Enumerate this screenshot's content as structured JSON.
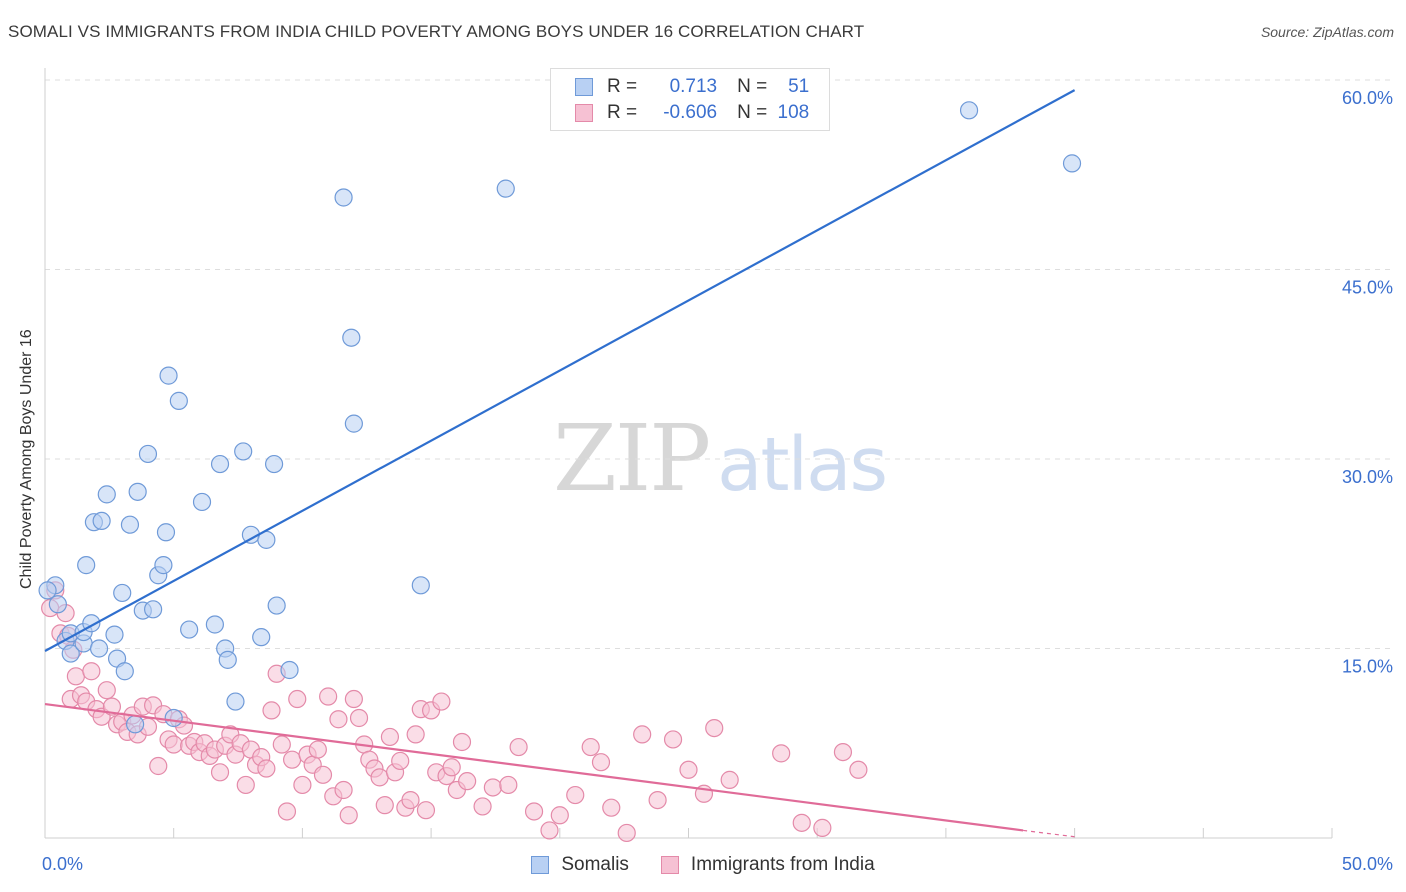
{
  "header": {
    "title": "SOMALI VS IMMIGRANTS FROM INDIA CHILD POVERTY AMONG BOYS UNDER 16 CORRELATION CHART",
    "source": "Source: ZipAtlas.com"
  },
  "watermark": {
    "part1": "ZIP",
    "part2": "atlas"
  },
  "legend_top": {
    "rows": [
      {
        "r_label": "R =",
        "r_value": "0.713",
        "n_label": "N =",
        "n_value": "51"
      },
      {
        "r_label": "R =",
        "r_value": "-0.606",
        "n_label": "N =",
        "n_value": "108"
      }
    ]
  },
  "colors": {
    "somali_fill": "#b8d0f3",
    "somali_stroke": "#6f9ad8",
    "somali_line": "#2f6fce",
    "india_fill": "#f6c1d3",
    "india_stroke": "#e48aa9",
    "india_line": "#e06b98",
    "grid": "#dedede",
    "tick_label": "#3b6fce"
  },
  "chart_data": {
    "type": "scatter",
    "title": "SOMALI VS IMMIGRANTS FROM INDIA CHILD POVERTY AMONG BOYS UNDER 16 CORRELATION CHART",
    "xlabel": "",
    "ylabel": "Child Poverty Among Boys Under 16",
    "xlim": [
      0,
      50
    ],
    "ylim": [
      0,
      60
    ],
    "x_tick_labels": [
      "0.0%",
      "50.0%"
    ],
    "y_ticks": [
      15,
      30,
      45,
      60
    ],
    "y_tick_labels": [
      "15.0%",
      "30.0%",
      "45.0%",
      "60.0%"
    ],
    "grid": true,
    "legend_placement": "bottom-center",
    "series": [
      {
        "name": "Somalis",
        "r": 0.713,
        "n": 51,
        "trend": {
          "x": [
            0,
            40.0
          ],
          "y": [
            14.8,
            59.2
          ]
        },
        "points": [
          [
            0.4,
            20.0
          ],
          [
            0.5,
            18.5
          ],
          [
            0.8,
            15.6
          ],
          [
            1.0,
            16.2
          ],
          [
            1.0,
            14.6
          ],
          [
            1.5,
            15.4
          ],
          [
            1.5,
            16.3
          ],
          [
            1.6,
            21.6
          ],
          [
            1.8,
            17.0
          ],
          [
            1.9,
            25.0
          ],
          [
            2.1,
            15.0
          ],
          [
            2.2,
            25.1
          ],
          [
            2.4,
            27.2
          ],
          [
            2.7,
            16.1
          ],
          [
            2.8,
            14.2
          ],
          [
            3.0,
            19.4
          ],
          [
            3.1,
            13.2
          ],
          [
            3.3,
            24.8
          ],
          [
            3.5,
            9.0
          ],
          [
            3.6,
            27.4
          ],
          [
            3.8,
            18.0
          ],
          [
            4.0,
            30.4
          ],
          [
            4.2,
            18.1
          ],
          [
            4.4,
            20.8
          ],
          [
            4.6,
            21.6
          ],
          [
            4.7,
            24.2
          ],
          [
            4.8,
            36.6
          ],
          [
            5.0,
            9.5
          ],
          [
            5.2,
            34.6
          ],
          [
            5.6,
            16.5
          ],
          [
            6.1,
            26.6
          ],
          [
            6.6,
            16.9
          ],
          [
            6.8,
            29.6
          ],
          [
            7.0,
            15.0
          ],
          [
            7.1,
            14.1
          ],
          [
            7.4,
            10.8
          ],
          [
            7.7,
            30.6
          ],
          [
            8.0,
            24.0
          ],
          [
            8.4,
            15.9
          ],
          [
            8.6,
            23.6
          ],
          [
            8.9,
            29.6
          ],
          [
            9.0,
            18.4
          ],
          [
            9.5,
            13.3
          ],
          [
            11.6,
            50.7
          ],
          [
            11.9,
            39.6
          ],
          [
            12.0,
            32.8
          ],
          [
            14.6,
            20.0
          ],
          [
            17.9,
            51.4
          ],
          [
            35.9,
            57.6
          ],
          [
            39.9,
            53.4
          ],
          [
            0.1,
            19.6
          ]
        ]
      },
      {
        "name": "Immigrants from India",
        "r": -0.606,
        "n": 108,
        "trend": {
          "x": [
            0,
            38.0
          ],
          "y": [
            10.6,
            0.6
          ]
        },
        "trend_dashed": {
          "x": [
            38.0,
            40.0
          ],
          "y": [
            0.6,
            0.1
          ]
        },
        "points": [
          [
            0.2,
            18.2
          ],
          [
            0.4,
            19.6
          ],
          [
            0.6,
            16.2
          ],
          [
            0.8,
            17.8
          ],
          [
            1.0,
            11.0
          ],
          [
            1.2,
            12.8
          ],
          [
            1.4,
            11.3
          ],
          [
            1.6,
            10.8
          ],
          [
            1.8,
            13.2
          ],
          [
            2.0,
            10.2
          ],
          [
            2.2,
            9.6
          ],
          [
            2.4,
            11.7
          ],
          [
            2.6,
            10.4
          ],
          [
            2.8,
            9.0
          ],
          [
            3.0,
            9.2
          ],
          [
            3.2,
            8.4
          ],
          [
            3.4,
            9.7
          ],
          [
            3.6,
            8.2
          ],
          [
            3.8,
            10.4
          ],
          [
            4.0,
            8.8
          ],
          [
            4.2,
            10.5
          ],
          [
            4.4,
            5.7
          ],
          [
            4.6,
            9.8
          ],
          [
            4.8,
            7.8
          ],
          [
            5.0,
            7.4
          ],
          [
            5.2,
            9.4
          ],
          [
            5.4,
            8.9
          ],
          [
            5.6,
            7.3
          ],
          [
            5.8,
            7.6
          ],
          [
            6.0,
            6.8
          ],
          [
            6.2,
            7.5
          ],
          [
            6.4,
            6.5
          ],
          [
            6.6,
            7.0
          ],
          [
            6.8,
            5.2
          ],
          [
            7.0,
            7.3
          ],
          [
            7.2,
            8.2
          ],
          [
            7.4,
            6.6
          ],
          [
            7.6,
            7.5
          ],
          [
            7.8,
            4.2
          ],
          [
            8.0,
            7.0
          ],
          [
            8.2,
            5.8
          ],
          [
            8.4,
            6.4
          ],
          [
            8.6,
            5.5
          ],
          [
            8.8,
            10.1
          ],
          [
            9.0,
            13.0
          ],
          [
            9.2,
            7.4
          ],
          [
            9.4,
            2.1
          ],
          [
            9.6,
            6.2
          ],
          [
            9.8,
            11.0
          ],
          [
            10.0,
            4.2
          ],
          [
            10.2,
            6.6
          ],
          [
            10.4,
            5.8
          ],
          [
            10.6,
            7.0
          ],
          [
            10.8,
            5.0
          ],
          [
            11.0,
            11.2
          ],
          [
            11.2,
            3.3
          ],
          [
            11.4,
            9.4
          ],
          [
            11.6,
            3.8
          ],
          [
            11.8,
            1.8
          ],
          [
            12.0,
            11.0
          ],
          [
            12.2,
            9.5
          ],
          [
            12.4,
            7.4
          ],
          [
            12.6,
            6.2
          ],
          [
            12.8,
            5.5
          ],
          [
            13.0,
            4.8
          ],
          [
            13.2,
            2.6
          ],
          [
            13.4,
            8.0
          ],
          [
            13.6,
            5.2
          ],
          [
            13.8,
            6.1
          ],
          [
            14.0,
            2.4
          ],
          [
            14.2,
            3.0
          ],
          [
            14.4,
            8.2
          ],
          [
            14.6,
            10.2
          ],
          [
            14.8,
            2.2
          ],
          [
            15.0,
            10.1
          ],
          [
            15.2,
            5.2
          ],
          [
            15.4,
            10.8
          ],
          [
            15.6,
            4.9
          ],
          [
            15.8,
            5.6
          ],
          [
            16.0,
            3.8
          ],
          [
            16.2,
            7.6
          ],
          [
            16.4,
            4.5
          ],
          [
            17.0,
            2.5
          ],
          [
            17.4,
            4.0
          ],
          [
            18.0,
            4.2
          ],
          [
            18.4,
            7.2
          ],
          [
            19.0,
            2.1
          ],
          [
            19.6,
            0.6
          ],
          [
            20.0,
            1.8
          ],
          [
            20.6,
            3.4
          ],
          [
            21.2,
            7.2
          ],
          [
            21.6,
            6.0
          ],
          [
            22.0,
            2.4
          ],
          [
            22.6,
            0.4
          ],
          [
            23.2,
            8.2
          ],
          [
            23.8,
            3.0
          ],
          [
            24.4,
            7.8
          ],
          [
            25.0,
            5.4
          ],
          [
            25.6,
            3.5
          ],
          [
            26.0,
            8.7
          ],
          [
            26.6,
            4.6
          ],
          [
            28.6,
            6.7
          ],
          [
            29.4,
            1.2
          ],
          [
            30.2,
            0.8
          ],
          [
            31.0,
            6.8
          ],
          [
            31.6,
            5.4
          ],
          [
            0.9,
            16.0
          ],
          [
            1.1,
            14.9
          ]
        ]
      }
    ]
  }
}
